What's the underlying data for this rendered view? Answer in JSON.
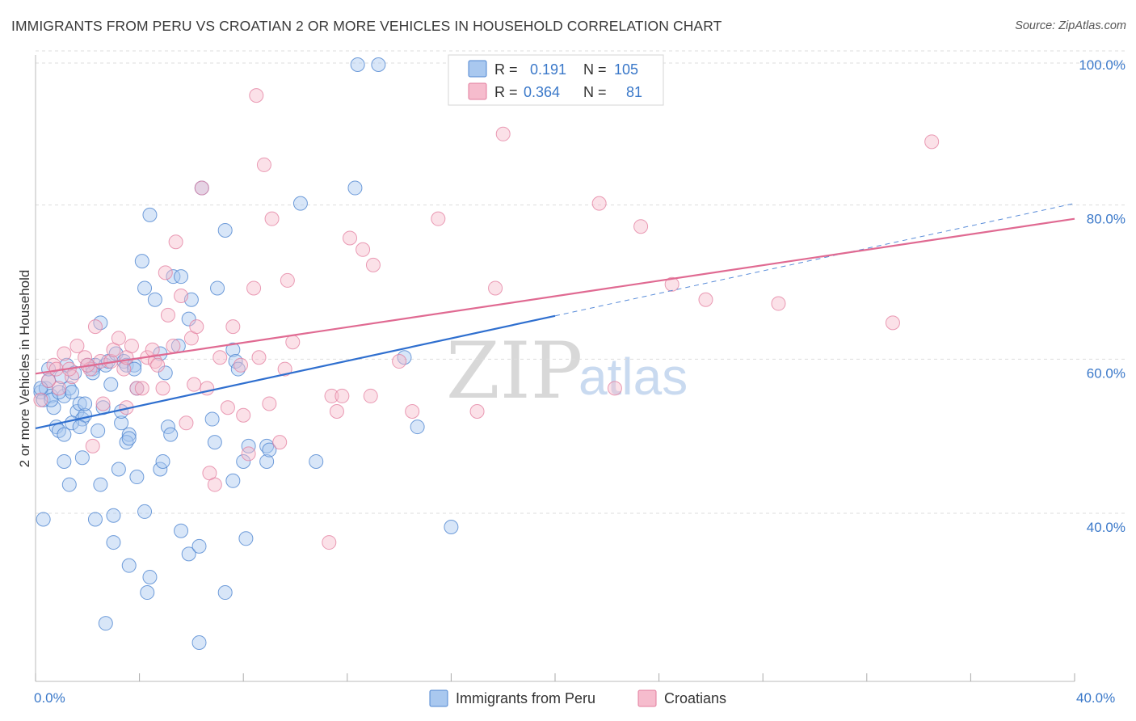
{
  "header": {
    "title": "IMMIGRANTS FROM PERU VS CROATIAN 2 OR MORE VEHICLES IN HOUSEHOLD CORRELATION CHART",
    "source": "Source: ZipAtlas.com"
  },
  "watermark": {
    "zip": "ZIP",
    "atlas": "atlas"
  },
  "chart_data": {
    "type": "scatter",
    "ylabel": "2 or more Vehicles in Household",
    "xlim": [
      0,
      40
    ],
    "ylim": [
      20,
      102
    ],
    "x_tick_labels": [
      "0.0%",
      "40.0%"
    ],
    "y_ticks": [
      40,
      60,
      80,
      100
    ],
    "y_tick_labels": [
      "40.0%",
      "60.0%",
      "80.0%",
      "100.0%"
    ],
    "grid": true,
    "legend_placement": "top-center",
    "colors": {
      "peru_fill": "#a9c8ef",
      "peru_stroke": "#4f86d1",
      "peru_line": "#2f6fcf",
      "croat_fill": "#f6bccd",
      "croat_stroke": "#e37c9d",
      "croat_line": "#e06a92"
    },
    "legend": [
      {
        "r_label": "R =",
        "r_value": "0.191",
        "n_label": "N =",
        "n_value": "105"
      },
      {
        "r_label": "R =",
        "r_value": "0.364",
        "n_label": "N =",
        "n_value": "81"
      }
    ],
    "series": [
      {
        "name": "Immigrants from Peru",
        "trend": {
          "x0": 0,
          "y0": 52.8,
          "x1": 20,
          "y1": 67.4,
          "dash_to_x": 40,
          "dash_to_y": 82.0
        },
        "points": [
          [
            0.2,
            57.5
          ],
          [
            0.3,
            56.5
          ],
          [
            0.4,
            58.0
          ],
          [
            0.5,
            59.0
          ],
          [
            0.5,
            60.5
          ],
          [
            0.6,
            57.0
          ],
          [
            0.7,
            55.5
          ],
          [
            0.8,
            53.0
          ],
          [
            0.9,
            52.5
          ],
          [
            1.0,
            59.5
          ],
          [
            1.1,
            57.0
          ],
          [
            1.2,
            61.0
          ],
          [
            1.3,
            58.0
          ],
          [
            1.4,
            57.5
          ],
          [
            1.5,
            60.0
          ],
          [
            1.6,
            55.0
          ],
          [
            1.7,
            56.0
          ],
          [
            1.8,
            54.0
          ],
          [
            1.9,
            54.5
          ],
          [
            2.0,
            61.0
          ],
          [
            2.2,
            60.5
          ],
          [
            2.3,
            61.0
          ],
          [
            2.5,
            66.5
          ],
          [
            2.7,
            61.0
          ],
          [
            2.8,
            61.5
          ],
          [
            2.9,
            58.5
          ],
          [
            3.1,
            62.5
          ],
          [
            3.3,
            53.5
          ],
          [
            3.4,
            61.5
          ],
          [
            3.5,
            61.0
          ],
          [
            3.6,
            52.0
          ],
          [
            3.8,
            61.0
          ],
          [
            3.9,
            58.0
          ],
          [
            4.1,
            74.5
          ],
          [
            4.2,
            71.0
          ],
          [
            4.4,
            80.5
          ],
          [
            4.6,
            69.5
          ],
          [
            4.8,
            62.5
          ],
          [
            5.0,
            60.0
          ],
          [
            5.1,
            53.0
          ],
          [
            5.2,
            52.0
          ],
          [
            5.3,
            72.5
          ],
          [
            5.5,
            63.5
          ],
          [
            5.6,
            72.5
          ],
          [
            5.9,
            67.0
          ],
          [
            6.0,
            69.5
          ],
          [
            6.4,
            84.0
          ],
          [
            6.8,
            54.0
          ],
          [
            6.9,
            51.0
          ],
          [
            7.0,
            71.0
          ],
          [
            7.3,
            78.5
          ],
          [
            7.6,
            63.0
          ],
          [
            7.7,
            61.5
          ],
          [
            7.8,
            60.5
          ],
          [
            8.0,
            48.5
          ],
          [
            8.2,
            50.5
          ],
          [
            8.9,
            48.5
          ],
          [
            8.9,
            50.5
          ],
          [
            9.0,
            50.0
          ],
          [
            10.2,
            82.0
          ],
          [
            10.8,
            48.5
          ],
          [
            12.3,
            84.0
          ],
          [
            12.4,
            100.0
          ],
          [
            13.2,
            100.0
          ],
          [
            14.2,
            62.0
          ],
          [
            14.7,
            53.0
          ],
          [
            0.3,
            41.0
          ],
          [
            1.1,
            48.5
          ],
          [
            1.3,
            45.5
          ],
          [
            1.8,
            49.0
          ],
          [
            2.3,
            41.0
          ],
          [
            2.5,
            45.5
          ],
          [
            3.0,
            41.5
          ],
          [
            3.2,
            47.5
          ],
          [
            3.5,
            51.0
          ],
          [
            3.6,
            51.5
          ],
          [
            3.9,
            46.5
          ],
          [
            4.2,
            42.0
          ],
          [
            4.8,
            47.5
          ],
          [
            4.9,
            48.5
          ],
          [
            5.6,
            39.5
          ],
          [
            5.9,
            36.5
          ],
          [
            6.3,
            37.5
          ],
          [
            7.6,
            46.0
          ],
          [
            8.1,
            38.5
          ],
          [
            3.0,
            38.0
          ],
          [
            3.6,
            35.0
          ],
          [
            4.4,
            33.5
          ],
          [
            4.3,
            31.5
          ],
          [
            7.3,
            31.5
          ],
          [
            2.7,
            27.5
          ],
          [
            6.3,
            25.0
          ],
          [
            16.0,
            40.0
          ],
          [
            0.2,
            58.0
          ],
          [
            0.6,
            56.5
          ],
          [
            0.9,
            57.5
          ],
          [
            1.1,
            52.0
          ],
          [
            1.4,
            53.5
          ],
          [
            1.9,
            56.0
          ],
          [
            2.2,
            60.0
          ],
          [
            2.6,
            55.5
          ],
          [
            3.3,
            55.0
          ],
          [
            3.8,
            60.5
          ],
          [
            1.7,
            53.0
          ],
          [
            2.4,
            52.5
          ]
        ]
      },
      {
        "name": "Croatians",
        "trend": {
          "x0": 0,
          "y0": 59.9,
          "x1": 40,
          "y1": 80.0
        },
        "points": [
          [
            0.2,
            56.5
          ],
          [
            0.5,
            59.0
          ],
          [
            0.7,
            61.0
          ],
          [
            0.8,
            60.5
          ],
          [
            1.1,
            62.5
          ],
          [
            1.4,
            59.5
          ],
          [
            1.6,
            63.5
          ],
          [
            1.9,
            62.0
          ],
          [
            2.1,
            60.5
          ],
          [
            2.3,
            66.0
          ],
          [
            2.5,
            61.5
          ],
          [
            2.6,
            56.0
          ],
          [
            2.9,
            61.5
          ],
          [
            3.0,
            63.0
          ],
          [
            3.2,
            64.5
          ],
          [
            3.4,
            60.5
          ],
          [
            3.5,
            62.0
          ],
          [
            3.7,
            63.5
          ],
          [
            3.9,
            58.0
          ],
          [
            4.1,
            58.0
          ],
          [
            4.3,
            62.0
          ],
          [
            4.6,
            61.5
          ],
          [
            4.7,
            61.0
          ],
          [
            4.9,
            58.0
          ],
          [
            5.0,
            73.0
          ],
          [
            5.1,
            67.5
          ],
          [
            5.3,
            63.5
          ],
          [
            5.4,
            77.0
          ],
          [
            5.6,
            70.0
          ],
          [
            5.8,
            53.5
          ],
          [
            6.0,
            64.5
          ],
          [
            6.2,
            66.0
          ],
          [
            6.4,
            84.0
          ],
          [
            6.6,
            58.0
          ],
          [
            6.7,
            47.0
          ],
          [
            6.9,
            45.5
          ],
          [
            7.1,
            62.0
          ],
          [
            7.4,
            55.5
          ],
          [
            7.6,
            66.0
          ],
          [
            7.9,
            61.0
          ],
          [
            8.0,
            54.5
          ],
          [
            8.2,
            49.5
          ],
          [
            8.4,
            71.0
          ],
          [
            8.6,
            62.0
          ],
          [
            8.8,
            87.0
          ],
          [
            9.0,
            56.0
          ],
          [
            9.1,
            80.0
          ],
          [
            9.4,
            51.0
          ],
          [
            9.6,
            60.5
          ],
          [
            9.7,
            72.0
          ],
          [
            9.9,
            64.0
          ],
          [
            11.3,
            38.0
          ],
          [
            11.4,
            57.0
          ],
          [
            11.6,
            55.0
          ],
          [
            11.8,
            57.0
          ],
          [
            12.1,
            77.5
          ],
          [
            12.6,
            76.0
          ],
          [
            12.9,
            57.0
          ],
          [
            13.0,
            74.0
          ],
          [
            14.0,
            61.5
          ],
          [
            14.5,
            55.0
          ],
          [
            15.5,
            80.0
          ],
          [
            17.0,
            55.0
          ],
          [
            17.7,
            71.0
          ],
          [
            18.0,
            91.0
          ],
          [
            21.7,
            82.0
          ],
          [
            22.3,
            58.0
          ],
          [
            23.3,
            79.0
          ],
          [
            24.5,
            71.5
          ],
          [
            25.8,
            69.5
          ],
          [
            28.6,
            69.0
          ],
          [
            33.0,
            66.5
          ],
          [
            34.5,
            90.0
          ],
          [
            8.5,
            96.0
          ],
          [
            2.2,
            50.5
          ],
          [
            3.5,
            55.5
          ],
          [
            1.3,
            60.5
          ],
          [
            0.9,
            58.0
          ],
          [
            4.5,
            63.0
          ],
          [
            6.1,
            58.5
          ],
          [
            2.0,
            61.0
          ]
        ]
      }
    ]
  }
}
